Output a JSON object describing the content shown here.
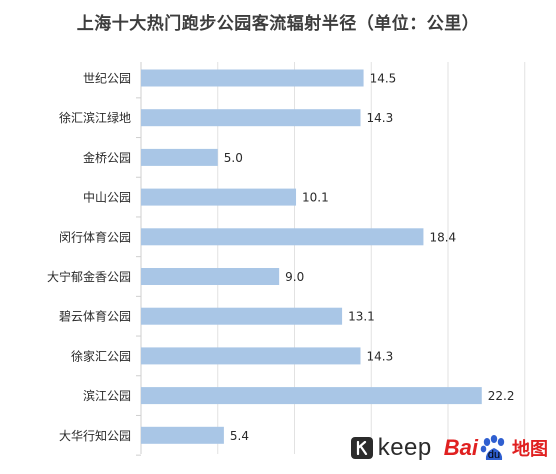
{
  "title": "上海十大热门跑步公园客流辐射半径（单位：公里）",
  "chart_data": {
    "type": "bar",
    "orientation": "horizontal",
    "categories": [
      "世纪公园",
      "徐汇滨江绿地",
      "金桥公园",
      "中山公园",
      "闵行体育公园",
      "大宁郁金香公园",
      "碧云体育公园",
      "徐家汇公园",
      "滨江公园",
      "大华行知公园"
    ],
    "values": [
      14.5,
      14.3,
      5.0,
      10.1,
      18.4,
      9.0,
      13.1,
      14.3,
      22.2,
      5.4
    ],
    "value_labels": [
      "14.5",
      "14.3",
      "5.0",
      "10.1",
      "18.4",
      "9.0",
      "13.1",
      "14.3",
      "22.2",
      "5.4"
    ],
    "xlim": [
      0,
      25
    ],
    "grid": true,
    "bar_color": "#a9c6e6",
    "grid_color": "#e2e2e2"
  },
  "logos": {
    "keep_text": "keep",
    "baidu_bai": "Bai",
    "baidu_du": "du",
    "baidu_ditu": "地图",
    "brand_red": "#e02020"
  }
}
